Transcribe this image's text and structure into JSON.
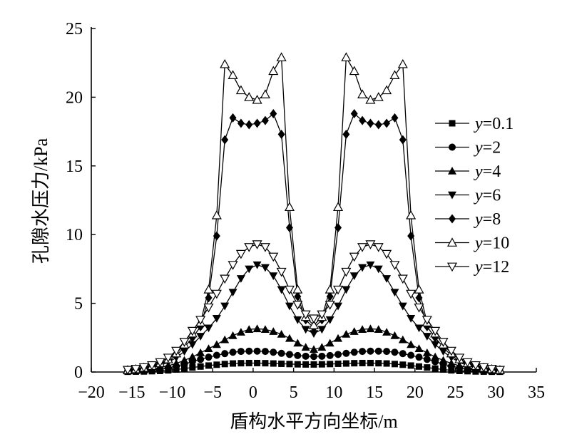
{
  "chart_data": {
    "type": "line",
    "title": "",
    "xlabel": "盾构水平方向坐标/m",
    "ylabel": "孔隙水压力/kPa",
    "xlim": [
      -20,
      35
    ],
    "ylim": [
      0,
      25
    ],
    "xticks": [
      -20,
      -15,
      -10,
      -5,
      0,
      5,
      10,
      15,
      20,
      25,
      30,
      35
    ],
    "yticks": [
      0,
      5,
      10,
      15,
      20,
      25
    ],
    "xtick_labels": [
      "−20",
      "−15",
      "−10",
      "−5",
      "0",
      "5",
      "10",
      "15",
      "20",
      "25",
      "30",
      "35"
    ],
    "ytick_labels": [
      "0",
      "5",
      "10",
      "15",
      "20",
      "25"
    ],
    "grid": false,
    "legend_position": "right",
    "x": [
      -15.5,
      -14.5,
      -13.5,
      -12.5,
      -11.5,
      -10.5,
      -9.5,
      -8.5,
      -7.5,
      -6.5,
      -5.5,
      -4.5,
      -3.5,
      -2.5,
      -1.5,
      -0.5,
      0.5,
      1.5,
      2.5,
      3.5,
      4.5,
      5.5,
      6.5,
      7.5,
      8.5,
      9.5,
      10.5,
      11.5,
      12.5,
      13.5,
      14.5,
      15.5,
      16.5,
      17.5,
      18.5,
      19.5,
      20.5,
      21.5,
      22.5,
      23.5,
      24.5,
      25.5,
      26.5,
      27.5,
      28.5,
      29.5,
      30.5
    ],
    "series": [
      {
        "name": "y=0.1",
        "marker": "square",
        "values": [
          0.02,
          0.03,
          0.04,
          0.06,
          0.08,
          0.12,
          0.18,
          0.25,
          0.33,
          0.4,
          0.47,
          0.53,
          0.58,
          0.62,
          0.64,
          0.65,
          0.65,
          0.64,
          0.62,
          0.6,
          0.58,
          0.56,
          0.55,
          0.55,
          0.56,
          0.58,
          0.6,
          0.62,
          0.64,
          0.65,
          0.65,
          0.64,
          0.62,
          0.58,
          0.53,
          0.47,
          0.4,
          0.33,
          0.25,
          0.18,
          0.12,
          0.08,
          0.06,
          0.04,
          0.03,
          0.02,
          0.02
        ]
      },
      {
        "name": "y=2",
        "marker": "circle",
        "values": [
          0.05,
          0.07,
          0.1,
          0.14,
          0.2,
          0.3,
          0.42,
          0.58,
          0.75,
          0.92,
          1.08,
          1.22,
          1.34,
          1.44,
          1.5,
          1.52,
          1.52,
          1.5,
          1.44,
          1.36,
          1.28,
          1.2,
          1.15,
          1.13,
          1.15,
          1.2,
          1.28,
          1.36,
          1.44,
          1.5,
          1.52,
          1.52,
          1.5,
          1.44,
          1.34,
          1.22,
          1.08,
          0.92,
          0.75,
          0.58,
          0.42,
          0.3,
          0.2,
          0.14,
          0.1,
          0.07,
          0.05
        ]
      },
      {
        "name": "y=4",
        "marker": "triangle-up",
        "values": [
          0.08,
          0.11,
          0.16,
          0.22,
          0.32,
          0.45,
          0.62,
          0.85,
          1.1,
          1.4,
          1.7,
          2.0,
          2.35,
          2.65,
          2.9,
          3.1,
          3.15,
          3.1,
          2.95,
          2.75,
          2.45,
          2.1,
          1.8,
          1.65,
          1.8,
          2.1,
          2.45,
          2.75,
          2.95,
          3.1,
          3.15,
          3.1,
          2.9,
          2.65,
          2.35,
          2.0,
          1.7,
          1.4,
          1.1,
          0.85,
          0.62,
          0.45,
          0.32,
          0.22,
          0.16,
          0.11,
          0.08
        ]
      },
      {
        "name": "y=6",
        "marker": "triangle-down",
        "values": [
          0.1,
          0.15,
          0.22,
          0.32,
          0.48,
          0.7,
          1.05,
          1.5,
          2.0,
          2.6,
          3.2,
          3.9,
          4.8,
          5.8,
          6.8,
          7.5,
          7.8,
          7.6,
          7.0,
          6.0,
          4.8,
          3.8,
          3.1,
          2.8,
          3.1,
          3.8,
          4.8,
          6.0,
          7.0,
          7.6,
          7.8,
          7.5,
          6.8,
          5.8,
          4.8,
          3.9,
          3.2,
          2.6,
          2.0,
          1.5,
          1.05,
          0.7,
          0.48,
          0.32,
          0.22,
          0.15,
          0.1
        ]
      },
      {
        "name": "y=8",
        "marker": "diamond",
        "values": [
          0.12,
          0.18,
          0.26,
          0.38,
          0.55,
          0.8,
          1.2,
          1.8,
          2.5,
          3.3,
          5.4,
          9.9,
          16.9,
          18.5,
          18.1,
          18.0,
          18.1,
          18.3,
          18.8,
          17.3,
          10.5,
          5.5,
          3.8,
          3.2,
          3.8,
          5.5,
          10.5,
          17.3,
          18.8,
          18.3,
          18.1,
          18.0,
          18.1,
          18.5,
          16.9,
          9.9,
          5.4,
          3.3,
          2.5,
          1.8,
          1.2,
          0.8,
          0.55,
          0.38,
          0.26,
          0.18,
          0.12
        ]
      },
      {
        "name": "y=10",
        "marker": "triangle-up-open",
        "values": [
          0.14,
          0.2,
          0.3,
          0.43,
          0.63,
          0.92,
          1.35,
          2.0,
          2.8,
          3.6,
          6.0,
          11.4,
          22.4,
          21.6,
          20.5,
          20.0,
          19.8,
          20.2,
          21.9,
          22.9,
          12.0,
          6.0,
          4.0,
          3.4,
          4.0,
          6.0,
          12.0,
          22.9,
          21.9,
          20.2,
          19.8,
          20.0,
          20.5,
          21.6,
          22.4,
          11.4,
          6.0,
          3.6,
          2.8,
          2.0,
          1.35,
          0.92,
          0.63,
          0.43,
          0.3,
          0.2,
          0.14
        ]
      },
      {
        "name": "y=12",
        "marker": "triangle-down-open",
        "values": [
          0.16,
          0.24,
          0.35,
          0.5,
          0.72,
          1.05,
          1.55,
          2.2,
          3.0,
          3.8,
          4.7,
          5.7,
          6.8,
          7.8,
          8.6,
          9.1,
          9.3,
          9.1,
          8.4,
          7.3,
          6.0,
          4.9,
          4.2,
          3.9,
          4.2,
          4.9,
          6.0,
          7.3,
          8.4,
          9.1,
          9.3,
          9.1,
          8.6,
          7.8,
          6.8,
          5.7,
          4.7,
          3.8,
          3.0,
          2.2,
          1.55,
          1.05,
          0.72,
          0.5,
          0.35,
          0.24,
          0.16
        ]
      }
    ],
    "legend": [
      {
        "var": "y",
        "value": "=0.1"
      },
      {
        "var": "y",
        "value": "=2"
      },
      {
        "var": "y",
        "value": "=4"
      },
      {
        "var": "y",
        "value": "=6"
      },
      {
        "var": "y",
        "value": "=8"
      },
      {
        "var": "y",
        "value": "=10"
      },
      {
        "var": "y",
        "value": "=12"
      }
    ],
    "line_color": "#000000"
  }
}
